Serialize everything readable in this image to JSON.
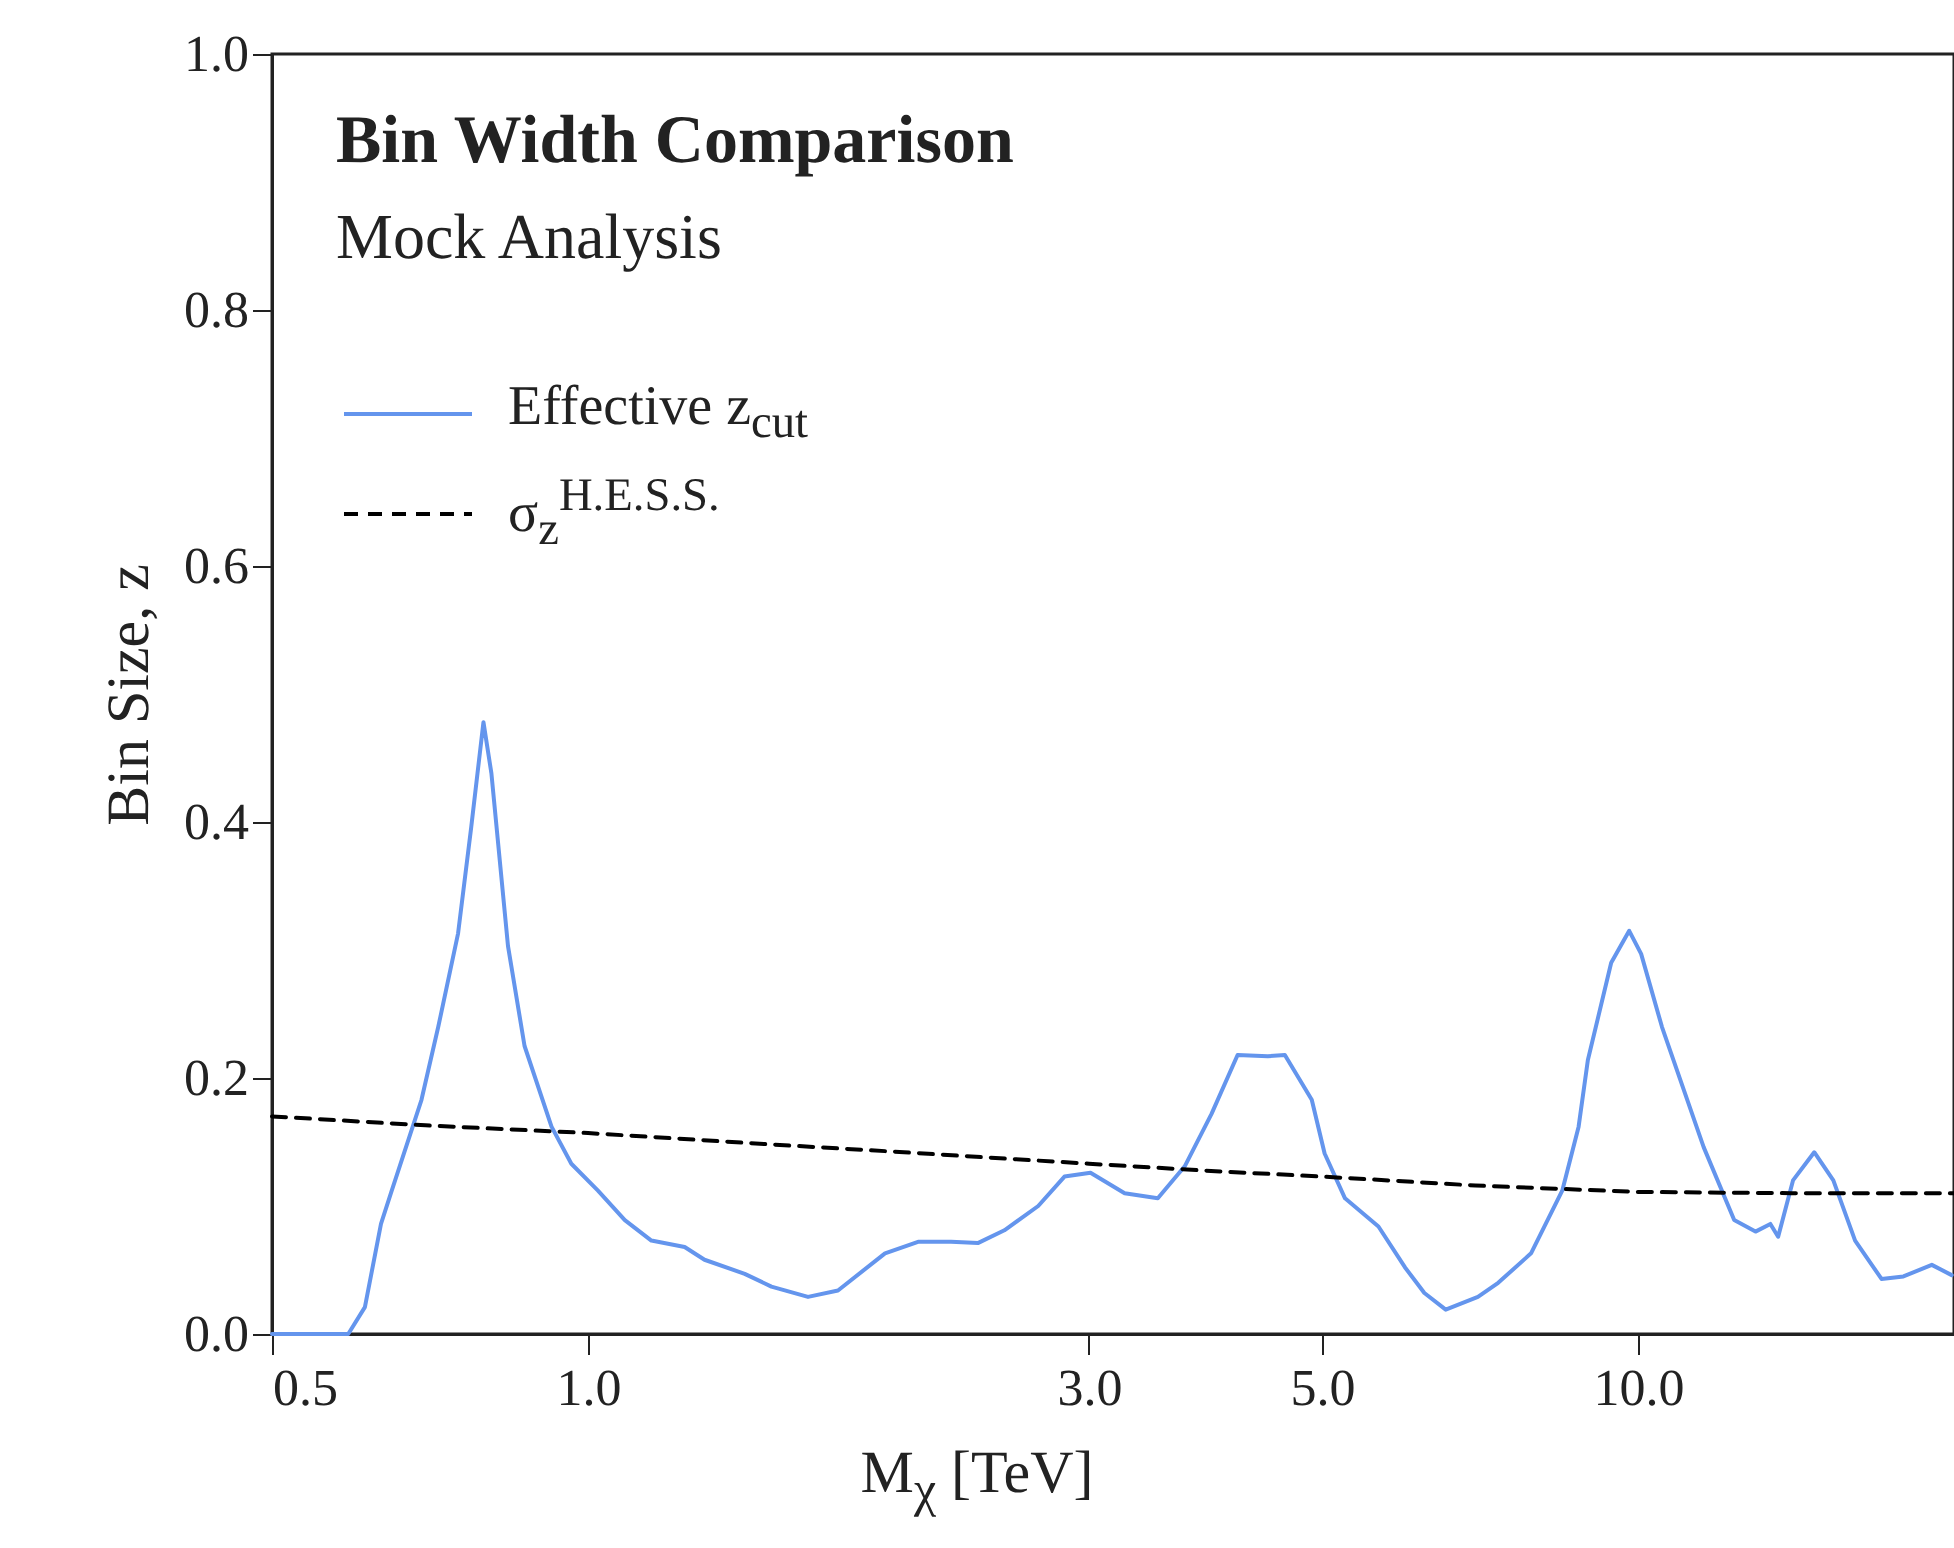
{
  "chart_data": {
    "type": "line",
    "title": "Bin Width Comparison",
    "subtitle": "Mock Analysis",
    "xlabel": "M$_{χ}$ [TeV]",
    "ylabel": "Bin Size, z",
    "log": "x",
    "legend": "top left",
    "grid": false,
    "xlim": [
      0.5,
      20
    ],
    "xticks": [
      0.5,
      {
        "value": 1,
        "label": "1.0"
      },
      {
        "value": 3,
        "label": "3.0"
      },
      {
        "value": 5,
        "label": "5.0"
      },
      {
        "value": 10,
        "label": "10.0"
      }
    ],
    "ylim": [
      0,
      1
    ],
    "yticks": [
      {
        "value": 0,
        "label": "0.0"
      },
      0.2,
      0.4,
      0.6,
      0.8,
      {
        "value": 1,
        "label": "1.0"
      }
    ],
    "series": [
      {
        "name": "Effective z$_{cut}$",
        "color": "#6495ed",
        "line_style": "solid",
        "x": [
          0.5,
          0.591,
          0.613,
          0.635,
          0.649,
          0.694,
          0.72,
          0.752,
          0.774,
          0.795,
          0.809,
          0.839,
          0.87,
          0.923,
          0.964,
          1.022,
          1.084,
          1.149,
          1.236,
          1.291,
          1.41,
          1.495,
          1.62,
          1.73,
          1.918,
          2.062,
          2.217,
          2.351,
          2.492,
          2.684,
          2.843,
          3.01,
          3.244,
          3.489,
          3.701,
          3.925,
          4.156,
          4.44,
          4.61,
          4.89,
          5.03,
          5.26,
          5.66,
          6.0,
          6.26,
          6.56,
          7.04,
          7.36,
          7.91,
          8.47,
          8.78,
          8.96,
          9.43,
          9.81,
          10.07,
          10.54,
          11.55,
          12.35,
          12.94,
          13.37,
          13.6,
          14.05,
          14.72,
          15.35,
          16.1,
          17.06,
          17.9,
          19.05,
          19.9
        ],
        "values": [
          0,
          0,
          0.021,
          0.086,
          0.11,
          0.183,
          0.24,
          0.313,
          0.396,
          0.478,
          0.438,
          0.303,
          0.225,
          0.162,
          0.133,
          0.112,
          0.089,
          0.073,
          0.068,
          0.058,
          0.047,
          0.037,
          0.029,
          0.034,
          0.063,
          0.072,
          0.072,
          0.071,
          0.081,
          0.1,
          0.123,
          0.126,
          0.11,
          0.106,
          0.131,
          0.172,
          0.218,
          0.217,
          0.218,
          0.183,
          0.141,
          0.106,
          0.084,
          0.052,
          0.032,
          0.019,
          0.029,
          0.04,
          0.063,
          0.112,
          0.162,
          0.214,
          0.29,
          0.315,
          0.297,
          0.24,
          0.146,
          0.089,
          0.08,
          0.086,
          0.076,
          0.12,
          0.142,
          0.12,
          0.073,
          0.043,
          0.045,
          0.054,
          0.046
        ]
      },
      {
        "name": "σ$_{z}$$^{H.E.S.S.}$",
        "color": "#000000",
        "line_style": "dashed",
        "x": [
          0.5,
          0.7,
          1.0,
          1.5,
          2,
          3,
          4,
          5,
          7,
          10,
          14,
          20
        ],
        "values": [
          0.17,
          0.163,
          0.157,
          0.148,
          0.142,
          0.133,
          0.127,
          0.123,
          0.116,
          0.111,
          0.11,
          0.11
        ]
      }
    ]
  }
}
